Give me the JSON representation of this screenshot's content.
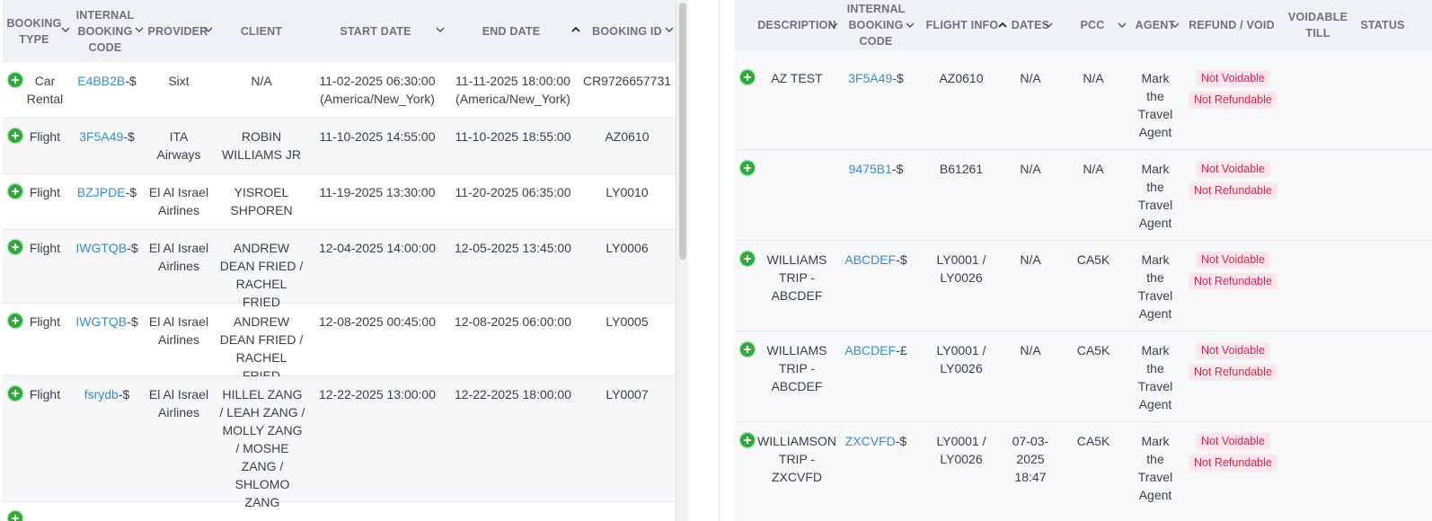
{
  "left_table": {
    "headers": {
      "booking_type": "BOOKING TYPE",
      "internal_code": "INTERNAL BOOKING CODE",
      "provider": "PROVIDER",
      "client": "CLIENT",
      "start_date": "START DATE",
      "end_date": "END DATE",
      "booking_id": "BOOKING ID"
    },
    "rows": [
      {
        "type": "Car Rental",
        "code": "E4BB2B",
        "suffix": "-$",
        "provider": "Sixt",
        "client": "N/A",
        "start": "11-02-2025 06:30:00 (America/New_York)",
        "end": "11-11-2025 18:00:00 (America/New_York)",
        "id": "CR9726657731"
      },
      {
        "type": "Flight",
        "code": "3F5A49",
        "suffix": "-$",
        "provider": "ITA Airways",
        "client": "ROBIN WILLIAMS JR",
        "start": "11-10-2025 14:55:00",
        "end": "11-10-2025 18:55:00",
        "id": "AZ0610"
      },
      {
        "type": "Flight",
        "code": "BZJPDE",
        "suffix": "-$",
        "provider": "El Al Israel Airlines",
        "client": "YISROEL SHPOREN",
        "start": "11-19-2025 13:30:00",
        "end": "11-20-2025 06:35:00",
        "id": "LY0010"
      },
      {
        "type": "Flight",
        "code": "IWGTQB",
        "suffix": "-$",
        "provider": "El Al Israel Airlines",
        "client": "ANDREW DEAN FRIED / RACHEL FRIED",
        "start": "12-04-2025 14:00:00",
        "end": "12-05-2025 13:45:00",
        "id": "LY0006"
      },
      {
        "type": "Flight",
        "code": "IWGTQB",
        "suffix": "-$",
        "provider": "El Al Israel Airlines",
        "client": "ANDREW DEAN FRIED / RACHEL FRIED",
        "start": "12-08-2025 00:45:00",
        "end": "12-08-2025 06:00:00",
        "id": "LY0005"
      },
      {
        "type": "Flight",
        "code": "fsrydb",
        "suffix": "-$",
        "provider": "El Al Israel Airlines",
        "client": "HILLEL ZANG / LEAH ZANG / MOLLY ZANG / MOSHE ZANG / SHLOMO ZANG",
        "start": "12-22-2025 13:00:00",
        "end": "12-22-2025 18:00:00",
        "id": "LY0007"
      }
    ]
  },
  "right_table": {
    "headers": {
      "description": "DESCRIPTION",
      "internal_code": "INTERNAL BOOKING CODE",
      "flight_info": "FLIGHT INFO",
      "dates": "DATES",
      "pcc": "PCC",
      "agent": "AGENT",
      "refund_void": "REFUND / VOID",
      "voidable_till": "VOIDABLE TILL",
      "status": "STATUS"
    },
    "rows": [
      {
        "description": "AZ TEST",
        "code": "3F5A49",
        "suffix": "-$",
        "flight": "AZ0610",
        "dates": "N/A",
        "pcc": "N/A",
        "agent": "Mark the Travel Agent",
        "void_badge": "Not Voidable",
        "refund_badge": "Not Refundable"
      },
      {
        "description": "",
        "code": "9475B1",
        "suffix": "-$",
        "flight": "B61261",
        "dates": "N/A",
        "pcc": "N/A",
        "agent": "Mark the Travel Agent",
        "void_badge": "Not Voidable",
        "refund_badge": "Not Refundable"
      },
      {
        "description": "WILLIAMS TRIP - ABCDEF",
        "code": "ABCDEF",
        "suffix": "-$",
        "flight": "LY0001 / LY0026",
        "dates": "N/A",
        "pcc": "CA5K",
        "agent": "Mark the Travel Agent",
        "void_badge": "Not Voidable",
        "refund_badge": "Not Refundable"
      },
      {
        "description": "WILLIAMS TRIP - ABCDEF",
        "code": "ABCDEF",
        "suffix": "-£",
        "flight": "LY0001 / LY0026",
        "dates": "N/A",
        "pcc": "CA5K",
        "agent": "Mark the Travel Agent",
        "void_badge": "Not Voidable",
        "refund_badge": "Not Refundable"
      },
      {
        "description": "WILLIAMSON TRIP - ZXCVFD",
        "code": "ZXCVFD",
        "suffix": "-$",
        "flight": "LY0001 / LY0026",
        "dates": "07-03-2025 18:47",
        "pcc": "CA5K",
        "agent": "Mark the Travel Agent",
        "void_badge": "Not Voidable",
        "refund_badge": "Not Refundable"
      }
    ]
  },
  "colors": {
    "link": "#3a8bd1",
    "add_icon": "#2eaa3c",
    "badge_text": "#d8264f",
    "badge_bg": "#fde7ec",
    "header_bg": "#eef1f5"
  },
  "icons": {
    "add": "plus-circle-icon",
    "sort": "chevron-down-icon",
    "sort_active": "chevron-up-icon"
  }
}
